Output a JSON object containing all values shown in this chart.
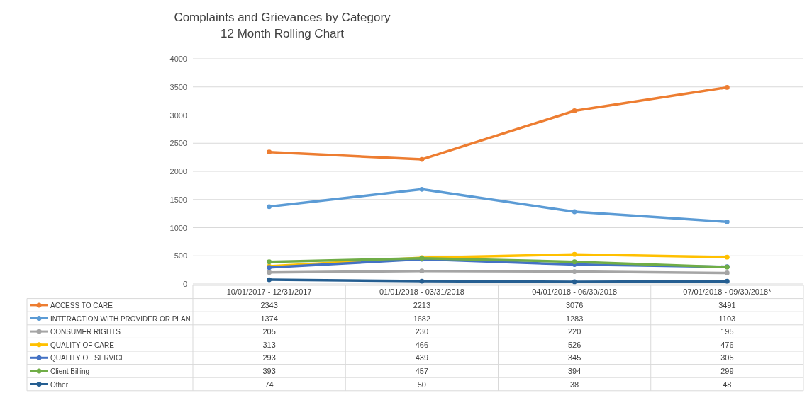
{
  "chart_data": {
    "type": "line",
    "title": "Complaints and Grievances by Category",
    "subtitle": "12 Month Rolling Chart",
    "categories": [
      "10/01/2017 - 12/31/2017",
      "01/01/2018 - 03/31/2018",
      "04/01/2018 - 06/30/2018",
      "07/01/2018 - 09/30/2018*"
    ],
    "series": [
      {
        "name": "ACCESS TO CARE",
        "color": "#ed7d31",
        "values": [
          2343,
          2213,
          3076,
          3491
        ]
      },
      {
        "name": "INTERACTION WITH PROVIDER OR PLAN",
        "color": "#5b9bd5",
        "values": [
          1374,
          1682,
          1283,
          1103
        ]
      },
      {
        "name": "CONSUMER RIGHTS",
        "color": "#a5a5a5",
        "values": [
          205,
          230,
          220,
          195
        ]
      },
      {
        "name": "QUALITY OF CARE",
        "color": "#ffc000",
        "values": [
          313,
          466,
          526,
          476
        ]
      },
      {
        "name": "QUALITY OF SERVICE",
        "color": "#4472c4",
        "values": [
          293,
          439,
          345,
          305
        ]
      },
      {
        "name": "Client Billing",
        "color": "#70ad47",
        "values": [
          393,
          457,
          394,
          299
        ]
      },
      {
        "name": "Other",
        "color": "#255e91",
        "values": [
          74,
          50,
          38,
          48
        ]
      }
    ],
    "ylim": [
      0,
      4000
    ],
    "yticks": [
      0,
      500,
      1000,
      1500,
      2000,
      2500,
      3000,
      3500,
      4000
    ],
    "grid": "y",
    "legend": "bottom",
    "marker": "circle",
    "line_style": "solid",
    "data_labels": true
  }
}
